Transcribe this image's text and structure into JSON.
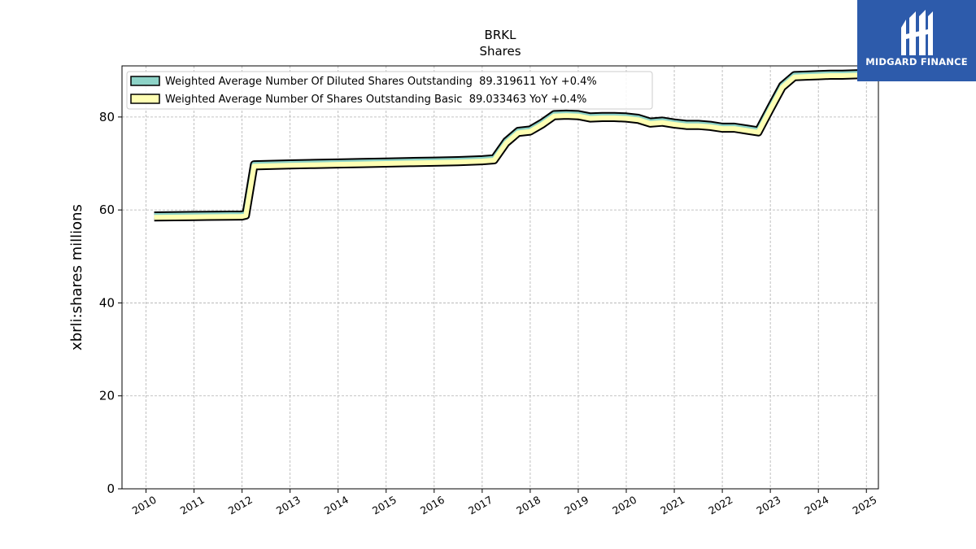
{
  "brand": {
    "name": "MIDGARD FINANCE",
    "color": "#2d5bab"
  },
  "chart_data": {
    "type": "line",
    "title": "BRKL",
    "subtitle": "Shares",
    "xlabel": "",
    "ylabel": "xbrli:shares millions",
    "xlim": [
      2009.5,
      2025.25
    ],
    "ylim": [
      0,
      91
    ],
    "yticks": [
      0,
      20,
      40,
      60,
      80
    ],
    "xticks": [
      "2010",
      "2011",
      "2012",
      "2013",
      "2014",
      "2015",
      "2016",
      "2017",
      "2018",
      "2019",
      "2020",
      "2021",
      "2022",
      "2023",
      "2024",
      "2025"
    ],
    "grid": true,
    "legend_position": "top-left",
    "series": [
      {
        "name": "Weighted Average Number Of Diluted Shares Outstanding  89.319611 YoY +0.4%",
        "color": "#8dd3c7",
        "x": [
          2010.17,
          2011.0,
          2012.0,
          2012.08,
          2012.25,
          2013.0,
          2013.5,
          2014.0,
          2014.5,
          2015.0,
          2015.5,
          2016.0,
          2016.5,
          2017.0,
          2017.25,
          2017.5,
          2017.75,
          2018.0,
          2018.25,
          2018.5,
          2018.75,
          2019.0,
          2019.25,
          2019.5,
          2019.75,
          2020.0,
          2020.25,
          2020.5,
          2020.75,
          2021.0,
          2021.25,
          2021.5,
          2021.75,
          2022.0,
          2022.25,
          2022.5,
          2022.75,
          2023.0,
          2023.25,
          2023.5,
          2023.75,
          2024.0,
          2024.25,
          2024.5,
          2024.83
        ],
        "y": [
          58.8,
          58.9,
          59.0,
          59.2,
          69.8,
          70.0,
          70.1,
          70.2,
          70.3,
          70.4,
          70.5,
          70.6,
          70.7,
          70.9,
          71.1,
          74.8,
          77.0,
          77.3,
          78.8,
          80.6,
          80.7,
          80.6,
          80.1,
          80.2,
          80.2,
          80.1,
          79.8,
          79.0,
          79.2,
          78.8,
          78.5,
          78.5,
          78.3,
          77.9,
          77.9,
          77.5,
          77.1,
          82.0,
          86.8,
          89.0,
          89.1,
          89.2,
          89.3,
          89.3,
          89.4
        ]
      },
      {
        "name": "Weighted Average Number Of Shares Outstanding Basic  89.033463 YoY +0.4%",
        "color": "#ffffb3",
        "x": [
          2010.17,
          2011.0,
          2012.0,
          2012.08,
          2012.25,
          2013.0,
          2013.5,
          2014.0,
          2014.5,
          2015.0,
          2015.5,
          2016.0,
          2016.5,
          2017.0,
          2017.25,
          2017.5,
          2017.75,
          2018.0,
          2018.25,
          2018.5,
          2018.75,
          2019.0,
          2019.25,
          2019.5,
          2019.75,
          2020.0,
          2020.25,
          2020.5,
          2020.75,
          2021.0,
          2021.25,
          2021.5,
          2021.75,
          2022.0,
          2022.25,
          2022.5,
          2022.75,
          2023.0,
          2023.25,
          2023.5,
          2023.75,
          2024.0,
          2024.25,
          2024.5,
          2024.83
        ],
        "y": [
          58.4,
          58.5,
          58.6,
          58.8,
          69.4,
          69.6,
          69.7,
          69.8,
          69.9,
          70.0,
          70.1,
          70.2,
          70.3,
          70.5,
          70.7,
          74.4,
          76.6,
          76.9,
          78.4,
          80.2,
          80.3,
          80.2,
          79.7,
          79.8,
          79.8,
          79.7,
          79.4,
          78.6,
          78.8,
          78.4,
          78.1,
          78.1,
          77.9,
          77.5,
          77.5,
          77.1,
          76.7,
          81.6,
          86.4,
          88.6,
          88.7,
          88.8,
          88.9,
          88.9,
          89.0
        ]
      }
    ]
  }
}
